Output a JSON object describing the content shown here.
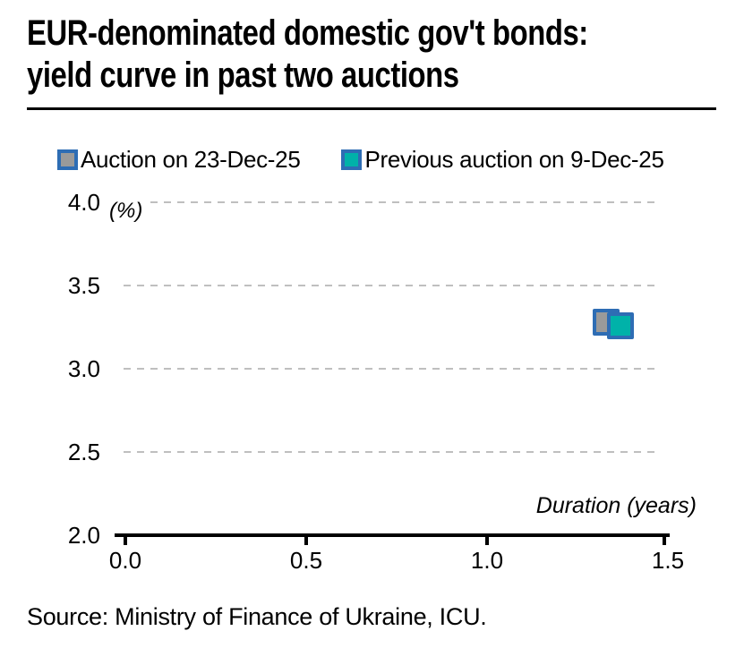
{
  "title": {
    "lines": [
      "EUR-denominated domestic gov't bonds:",
      "yield curve in past two auctions"
    ]
  },
  "legend": {
    "items": [
      {
        "label": "Auction on 23-Dec-25",
        "swatch_fill": "#9a9a9a",
        "swatch_border": "#2e6db4"
      },
      {
        "label": "Previous auction on 9-Dec-25",
        "swatch_fill": "#00b2a9",
        "swatch_border": "#2e6db4"
      }
    ]
  },
  "chart_data": {
    "type": "scatter",
    "title": "EUR-denominated domestic gov't bonds: yield curve in past two auctions",
    "xlabel": "Duration (years)",
    "ylabel": "(%)",
    "xlim": [
      0.0,
      1.5
    ],
    "ylim": [
      2.0,
      4.0
    ],
    "grid": "horizontal dashed gridlines at 2.5, 3.0, 3.5, 4.0; gray",
    "legend_position": "top",
    "x_ticks": [
      {
        "value": 0.0,
        "label": "0.0"
      },
      {
        "value": 0.5,
        "label": "0.5"
      },
      {
        "value": 1.0,
        "label": "1.0"
      },
      {
        "value": 1.5,
        "label": "1.5"
      }
    ],
    "y_ticks": [
      {
        "value": 4.0,
        "label": "4.0",
        "gridline": true
      },
      {
        "value": 3.5,
        "label": "3.5",
        "gridline": true
      },
      {
        "value": 3.0,
        "label": "3.0",
        "gridline": true
      },
      {
        "value": 2.5,
        "label": "2.5",
        "gridline": true
      },
      {
        "value": 2.0,
        "label": "2.0",
        "gridline": false
      }
    ],
    "series": [
      {
        "name": "Auction on 23-Dec-25",
        "marker": "square",
        "fill": "#9a9a9a",
        "border": "#2e6db4",
        "points": [
          {
            "x": 1.33,
            "y": 3.28
          }
        ]
      },
      {
        "name": "Previous auction on 9-Dec-25",
        "marker": "square",
        "fill": "#00b2a9",
        "border": "#2e6db4",
        "points": [
          {
            "x": 1.37,
            "y": 3.26
          }
        ]
      }
    ],
    "colors": {
      "axis": "#000000",
      "gridline": "#bfbfbf",
      "marker_border": "#2e6db4",
      "gray_fill": "#9a9a9a",
      "teal_fill": "#00b2a9"
    }
  },
  "source": "Source: Ministry of Finance of Ukraine, ICU."
}
